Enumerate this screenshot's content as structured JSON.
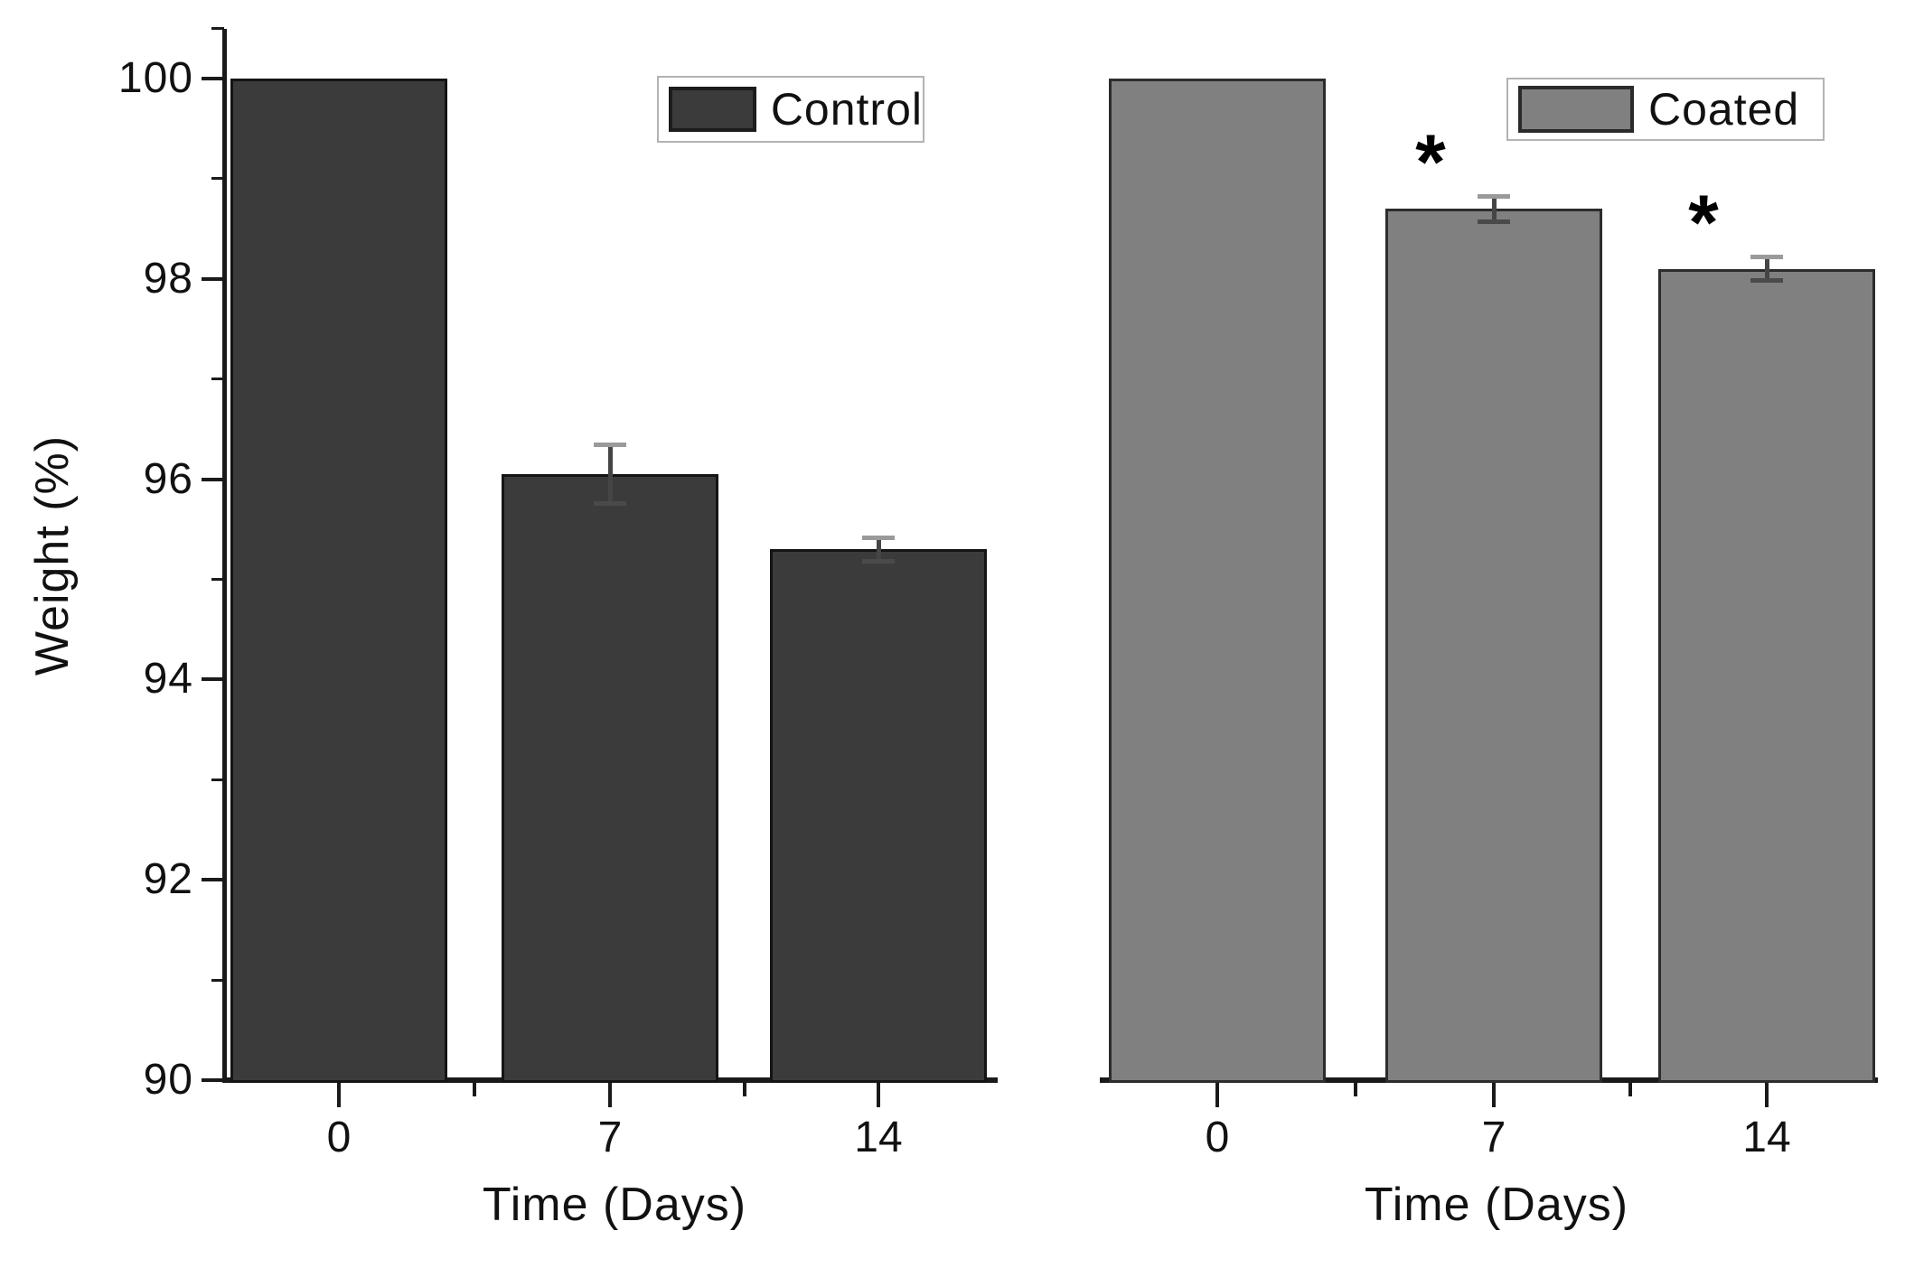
{
  "figure": {
    "background": "#ffffff"
  },
  "axes": {
    "y_label": "Weight (%)",
    "x_label": "Time (Days)",
    "y_tick_values": [
      100,
      98,
      96,
      94,
      92,
      90
    ],
    "y_tick_labels": [
      "100",
      "98",
      "96",
      "94",
      "92",
      "90"
    ],
    "y_minor_tick_values": [
      100.5,
      99,
      97,
      95,
      93,
      91
    ],
    "y_range": [
      90,
      100.5
    ],
    "x_tick_labels": [
      "0",
      "7",
      "14"
    ]
  },
  "annotations": {
    "significance_marker": "*"
  },
  "colors": {
    "control_fill": "#3b3b3b",
    "control_border": "#141414",
    "coated_fill": "#808080",
    "coated_border": "#2c2c2c",
    "axis": "#1a1a1a"
  },
  "chart_data": [
    {
      "type": "bar",
      "panel": "left",
      "series": "Control",
      "categories": [
        "0",
        "7",
        "14"
      ],
      "values": [
        100,
        96.05,
        95.3
      ],
      "errors": [
        0,
        0.3,
        0.12
      ],
      "significant": [
        false,
        false,
        false
      ],
      "xlabel": "Time (Days)",
      "ylabel": "Weight (%)",
      "ylim": [
        90,
        100.5
      ],
      "legend_position": "top-right",
      "grid": false
    },
    {
      "type": "bar",
      "panel": "right",
      "series": "Coated",
      "categories": [
        "0",
        "7",
        "14"
      ],
      "values": [
        100,
        98.7,
        98.1
      ],
      "errors": [
        0,
        0.13,
        0.12
      ],
      "significant": [
        false,
        true,
        true
      ],
      "xlabel": "Time (Days)",
      "ylabel": "Weight (%)",
      "ylim": [
        90,
        100.5
      ],
      "legend_position": "top-right",
      "grid": false
    }
  ]
}
